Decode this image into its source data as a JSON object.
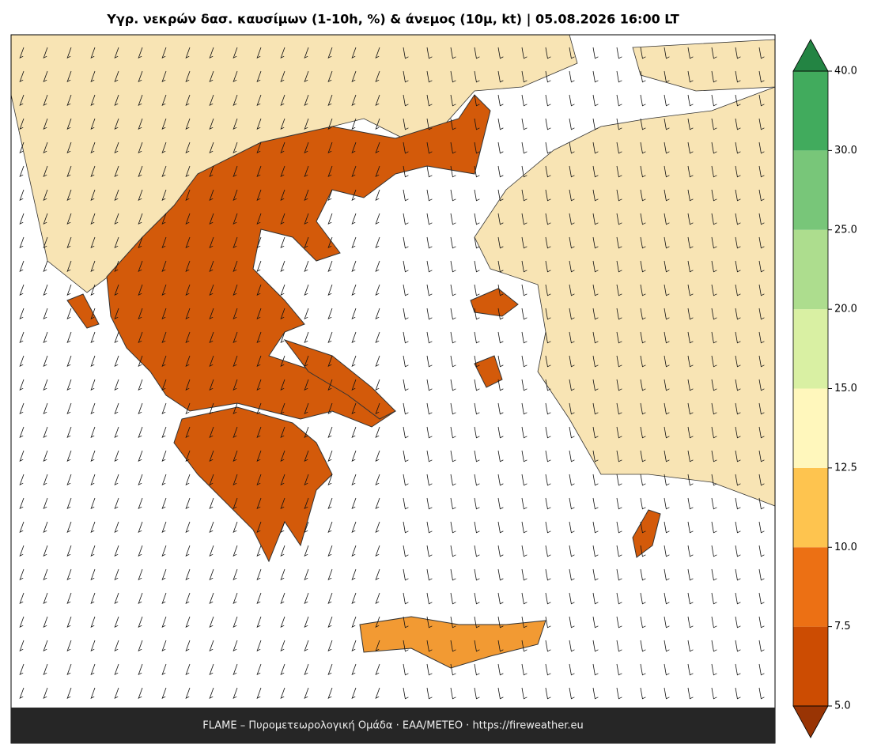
{
  "title": "Υγρ. νεκρών δασ. καυσίμων (1-10h, %) & άνεμος (10μ, kt)  |  05.08.2026 16:00 LT",
  "footer": "FLAME – Πυρομετεωρολογική Ομάδα · ΕΑΑ/METEO · https://fireweather.eu",
  "colorbar": {
    "levels": [
      {
        "value": 5,
        "label": "5.0"
      },
      {
        "value": 7.5,
        "label": "7.5"
      },
      {
        "value": 10,
        "label": "10.0"
      },
      {
        "value": 12.5,
        "label": "12.5"
      },
      {
        "value": 15,
        "label": "15.0"
      },
      {
        "value": 20,
        "label": "20.0"
      },
      {
        "value": 25,
        "label": "25.0"
      },
      {
        "value": 30,
        "label": "30.0"
      },
      {
        "value": 40,
        "label": "40.0"
      }
    ],
    "colors": [
      "#cc4c02",
      "#ec7014",
      "#fec44f",
      "#fff7bc",
      "#d9f0a3",
      "#addd8e",
      "#78c679",
      "#41ab5d"
    ],
    "under_color": "#993404",
    "over_color": "#238443"
  }
}
